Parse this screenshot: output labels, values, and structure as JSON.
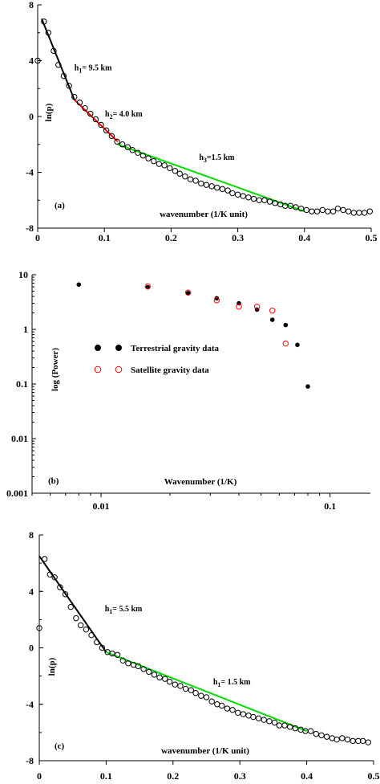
{
  "figure": {
    "background": "#ffffff"
  },
  "chart_data": [
    {
      "id": "a",
      "type": "scatter",
      "panel_label": "(a)",
      "xlabel": "wavenumber (1/K unit)",
      "ylabel": "ln(p)",
      "xlim": [
        0,
        0.5
      ],
      "ylim": [
        -8,
        8
      ],
      "xticks": [
        0,
        0.1,
        0.2,
        0.3,
        0.4,
        0.5
      ],
      "xtick_labels": [
        "0",
        "0.1",
        "0.2",
        "0.3",
        "0.4",
        "0.5"
      ],
      "yticks": [
        -8,
        -4,
        0,
        4,
        8
      ],
      "ytick_labels": [
        "-8",
        "-4",
        "0",
        "4",
        "8"
      ],
      "grid": false,
      "series": [
        {
          "marker": "open-circle",
          "color": "#000000",
          "x": [
            0.0,
            0.0095,
            0.016,
            0.024,
            0.031,
            0.039,
            0.047,
            0.055,
            0.063,
            0.071,
            0.079,
            0.087,
            0.095,
            0.103,
            0.111,
            0.119,
            0.127,
            0.135,
            0.142,
            0.15,
            0.158,
            0.166,
            0.174,
            0.182,
            0.19,
            0.198,
            0.206,
            0.213,
            0.221,
            0.229,
            0.237,
            0.245,
            0.253,
            0.261,
            0.269,
            0.277,
            0.285,
            0.292,
            0.3,
            0.308,
            0.316,
            0.324,
            0.332,
            0.34,
            0.348,
            0.356,
            0.364,
            0.371,
            0.379,
            0.387,
            0.395,
            0.403,
            0.411,
            0.419,
            0.427,
            0.435,
            0.443,
            0.45,
            0.458,
            0.466,
            0.474,
            0.482,
            0.49,
            0.498
          ],
          "y": [
            4.0,
            6.8,
            6.0,
            4.7,
            3.7,
            2.9,
            2.2,
            1.4,
            1.0,
            0.6,
            0.2,
            -0.2,
            -0.6,
            -1.0,
            -1.4,
            -1.8,
            -2.0,
            -2.2,
            -2.4,
            -2.6,
            -2.8,
            -3.0,
            -3.2,
            -3.4,
            -3.5,
            -3.7,
            -3.9,
            -4.1,
            -4.3,
            -4.5,
            -4.6,
            -4.8,
            -4.9,
            -5.0,
            -5.1,
            -5.2,
            -5.3,
            -5.5,
            -5.6,
            -5.7,
            -5.8,
            -5.9,
            -6.0,
            -6.0,
            -6.1,
            -6.2,
            -6.3,
            -6.4,
            -6.4,
            -6.5,
            -6.6,
            -6.7,
            -6.8,
            -6.8,
            -6.7,
            -6.8,
            -6.8,
            -6.6,
            -6.7,
            -6.8,
            -6.9,
            -6.9,
            -6.9,
            -6.8
          ]
        }
      ],
      "fit_lines": [
        {
          "color": "#000000",
          "x": [
            0.006,
            0.055
          ],
          "y": [
            7.0,
            1.2
          ]
        },
        {
          "color": "#ff0000",
          "x": [
            0.055,
            0.12
          ],
          "y": [
            1.2,
            -1.8
          ]
        },
        {
          "color": "#00dd00",
          "x": [
            0.12,
            0.4
          ],
          "y": [
            -2.0,
            -6.8
          ]
        }
      ],
      "annotations": [
        {
          "text": "h1= 9.5 km",
          "main": "h",
          "sub": "1",
          "rest": "= 9.5 km",
          "x": 0.055,
          "y": 3.3
        },
        {
          "text": "h2= 4.0 km",
          "main": "h",
          "sub": "2",
          "rest": "= 4.0 km",
          "x": 0.101,
          "y": 0.0
        },
        {
          "text": "h3=1.5 km",
          "main": "h",
          "sub": "3",
          "rest": "=1.5 km",
          "x": 0.242,
          "y": -3.1
        }
      ]
    },
    {
      "id": "b",
      "type": "scatter",
      "panel_label": "(b)",
      "xlabel": "Wavenumber (1/K)",
      "ylabel": "log (Power)",
      "xscale": "log",
      "yscale": "log",
      "xlim": [
        0.005,
        0.15
      ],
      "ylim": [
        0.001,
        10
      ],
      "xticks": [
        0.01,
        0.1
      ],
      "xtick_labels": [
        "0.01",
        "0.1"
      ],
      "yticks": [
        0.001,
        0.01,
        0.1,
        1,
        10
      ],
      "ytick_labels": [
        "0.001",
        "0.01",
        "0.1",
        "1",
        "10"
      ],
      "grid": false,
      "series": [
        {
          "name": "Terrestrial gravity data",
          "marker": "filled-circle",
          "color": "#000000",
          "x": [
            0.008,
            0.016,
            0.024,
            0.032,
            0.04,
            0.048,
            0.056,
            0.064,
            0.072,
            0.08
          ],
          "y": [
            6.6,
            5.9,
            4.6,
            3.7,
            3.0,
            2.3,
            1.5,
            1.2,
            0.52,
            0.09
          ]
        },
        {
          "name": "Satellite gravity data",
          "marker": "open-circle",
          "color": "#ff0000",
          "x": [
            0.016,
            0.024,
            0.032,
            0.04,
            0.048,
            0.056,
            0.064
          ],
          "y": [
            6.1,
            4.7,
            3.4,
            2.6,
            2.6,
            2.2,
            0.55
          ]
        }
      ],
      "legend_placement": "center-left"
    },
    {
      "id": "c",
      "type": "scatter",
      "panel_label": "(c)",
      "xlabel": "wavenumber (1/K unit)",
      "ylabel": "ln(p)",
      "xlim": [
        0,
        0.5
      ],
      "ylim": [
        -8,
        8
      ],
      "xticks": [
        0,
        0.1,
        0.2,
        0.3,
        0.4,
        0.5
      ],
      "xtick_labels": [
        "0",
        "0.1",
        "0.2",
        "0.3",
        "0.4",
        "0.5"
      ],
      "yticks": [
        -8,
        -4,
        0,
        4,
        8
      ],
      "ytick_labels": [
        "-8",
        "-4",
        "0",
        "4",
        "8"
      ],
      "grid": false,
      "series": [
        {
          "marker": "open-circle",
          "color": "#000000",
          "x": [
            0.0,
            0.008,
            0.016,
            0.023,
            0.031,
            0.039,
            0.047,
            0.055,
            0.062,
            0.07,
            0.078,
            0.086,
            0.094,
            0.102,
            0.109,
            0.117,
            0.125,
            0.133,
            0.141,
            0.148,
            0.156,
            0.164,
            0.172,
            0.18,
            0.188,
            0.195,
            0.203,
            0.211,
            0.219,
            0.227,
            0.234,
            0.242,
            0.25,
            0.258,
            0.266,
            0.273,
            0.281,
            0.289,
            0.297,
            0.305,
            0.313,
            0.32,
            0.328,
            0.336,
            0.344,
            0.352,
            0.359,
            0.367,
            0.375,
            0.383,
            0.391,
            0.398,
            0.406,
            0.414,
            0.422,
            0.43,
            0.438,
            0.445,
            0.453,
            0.461,
            0.469,
            0.477,
            0.484,
            0.492
          ],
          "y": [
            1.4,
            6.3,
            5.2,
            5.0,
            4.3,
            3.8,
            2.9,
            2.1,
            1.6,
            1.3,
            0.9,
            0.4,
            0.0,
            -0.3,
            -0.4,
            -0.5,
            -0.9,
            -1.1,
            -1.2,
            -1.3,
            -1.5,
            -1.7,
            -1.9,
            -2.1,
            -2.2,
            -2.4,
            -2.6,
            -2.7,
            -2.9,
            -3.0,
            -3.2,
            -3.4,
            -3.5,
            -3.8,
            -4.0,
            -4.1,
            -4.3,
            -4.4,
            -4.6,
            -4.7,
            -4.8,
            -4.9,
            -5.0,
            -5.1,
            -5.2,
            -5.3,
            -5.5,
            -5.5,
            -5.6,
            -5.7,
            -5.8,
            -5.9,
            -5.9,
            -6.1,
            -6.2,
            -6.3,
            -6.4,
            -6.5,
            -6.4,
            -6.5,
            -6.6,
            -6.6,
            -6.6,
            -6.7
          ]
        }
      ],
      "fit_lines": [
        {
          "color": "#000000",
          "x": [
            0.0,
            0.1
          ],
          "y": [
            6.5,
            -0.3
          ]
        },
        {
          "color": "#00dd00",
          "x": [
            0.1,
            0.4
          ],
          "y": [
            -0.3,
            -5.9
          ]
        }
      ],
      "annotations": [
        {
          "text": "h1= 5.5 km",
          "main": "h",
          "sub": "1",
          "rest": "= 5.5 km",
          "x": 0.098,
          "y": 2.6
        },
        {
          "text": "h1= 1.5 km",
          "main": "h",
          "sub": "1",
          "rest": "= 1.5 km",
          "x": 0.26,
          "y": -2.6
        }
      ]
    }
  ]
}
